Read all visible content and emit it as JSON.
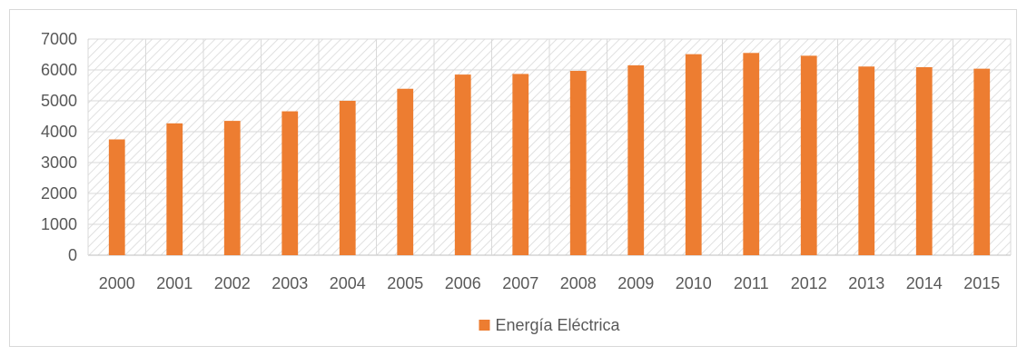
{
  "chart_data": {
    "type": "bar",
    "title": "",
    "xlabel": "",
    "ylabel": "",
    "categories": [
      "2000",
      "2001",
      "2002",
      "2003",
      "2004",
      "2005",
      "2006",
      "2007",
      "2008",
      "2009",
      "2010",
      "2011",
      "2012",
      "2013",
      "2014",
      "2015"
    ],
    "series": [
      {
        "name": "Energía Eléctrica",
        "color": "#ED7D31",
        "values": [
          3750,
          4270,
          4350,
          4660,
          5000,
          5390,
          5850,
          5870,
          5970,
          6150,
          6510,
          6550,
          6460,
          6110,
          6090,
          6040
        ]
      }
    ],
    "ylim": [
      0,
      7000
    ],
    "yticks": [
      0,
      1000,
      2000,
      3000,
      4000,
      5000,
      6000,
      7000
    ],
    "ytick_labels": [
      "0",
      "1000",
      "2000",
      "3000",
      "4000",
      "5000",
      "6000",
      "7000"
    ],
    "grid": true,
    "plot_background": "hatched",
    "legend_position": "bottom"
  }
}
